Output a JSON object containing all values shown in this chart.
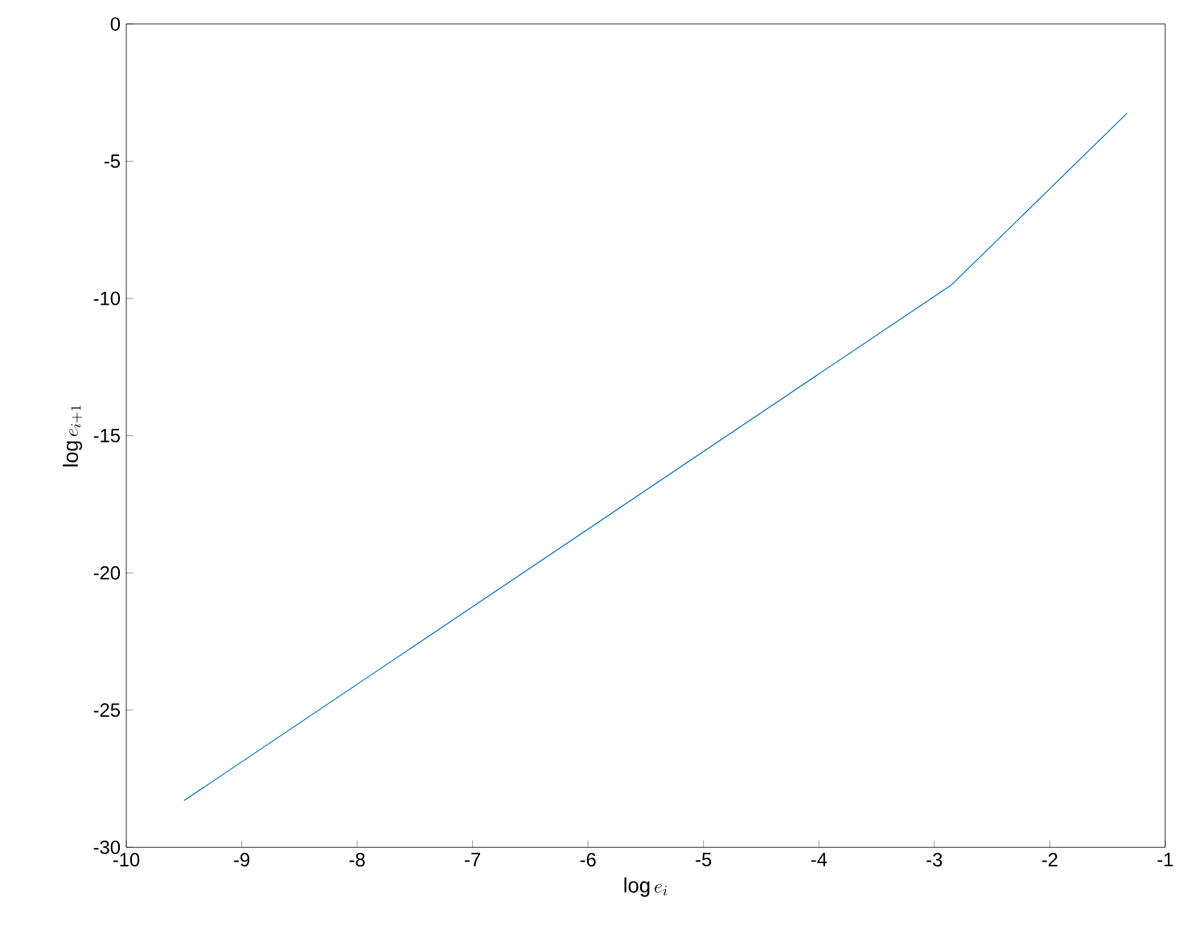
{
  "chart_data": {
    "type": "line",
    "xlabel": "\\log e_i",
    "ylabel": "\\log e_{i+1}",
    "series": [
      {
        "color": "#0072bd",
        "x": [
          -9.5,
          -2.85,
          -1.33
        ],
        "values": [
          -28.3,
          -9.5,
          -3.25
        ]
      }
    ],
    "xlim": [
      -10,
      -1
    ],
    "ylim": [
      -30,
      0
    ],
    "xticks": [
      -10,
      -9,
      -8,
      -7,
      -6,
      -5,
      -4,
      -3,
      -2,
      -1
    ],
    "yticks": [
      -30,
      -25,
      -20,
      -15,
      -10,
      -5,
      0
    ],
    "grid": false
  }
}
